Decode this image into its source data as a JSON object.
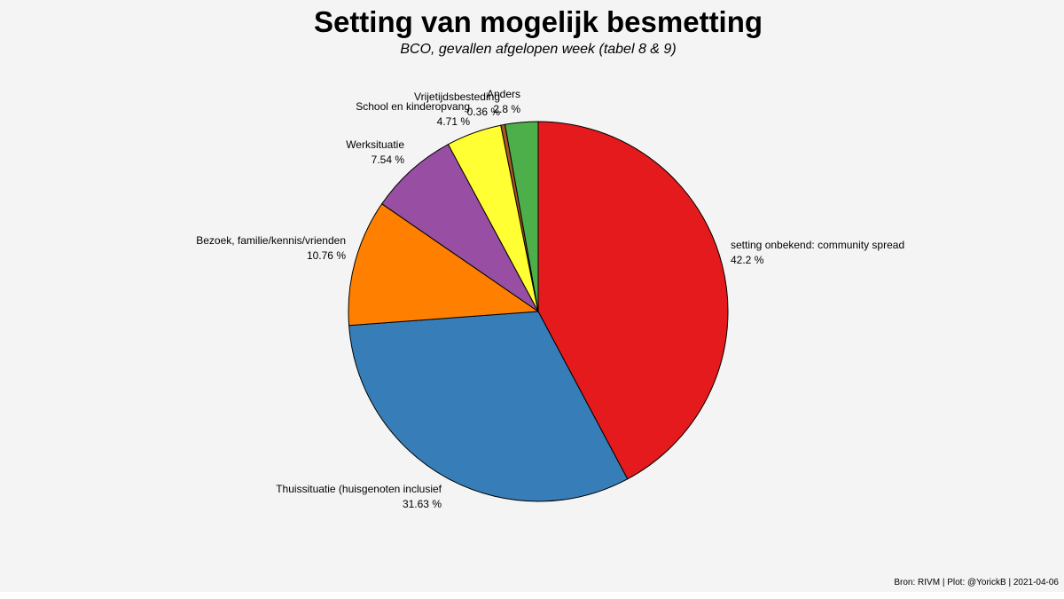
{
  "chart_data": {
    "type": "pie",
    "title": "Setting van mogelijk besmetting",
    "subtitle": "BCO, gevallen afgelopen week (tabel 8 & 9)",
    "caption": "Bron: RIVM | Plot: @YorickB |  2021-04-06",
    "slices": [
      {
        "label": "setting onbekend: community spread",
        "value": 42.2,
        "value_label": "42.2 %",
        "color": "#e41a1c"
      },
      {
        "label": "Thuissituatie (huisgenoten inclusief",
        "value": 31.63,
        "value_label": "31.63 %",
        "color": "#377eb8"
      },
      {
        "label": "Bezoek, familie/kennis/vrienden",
        "value": 10.76,
        "value_label": "10.76 %",
        "color": "#ff7f00"
      },
      {
        "label": "Werksituatie",
        "value": 7.54,
        "value_label": "7.54 %",
        "color": "#984ea3"
      },
      {
        "label": "School en kinderopvang",
        "value": 4.71,
        "value_label": "4.71 %",
        "color": "#ffff33"
      },
      {
        "label": "Vrijetijdsbesteding",
        "value": 0.36,
        "value_label": "0.36 %",
        "color": "#a65628"
      },
      {
        "label": "Anders",
        "value": 2.8,
        "value_label": "2.8 %",
        "color": "#4daf4a"
      }
    ]
  }
}
